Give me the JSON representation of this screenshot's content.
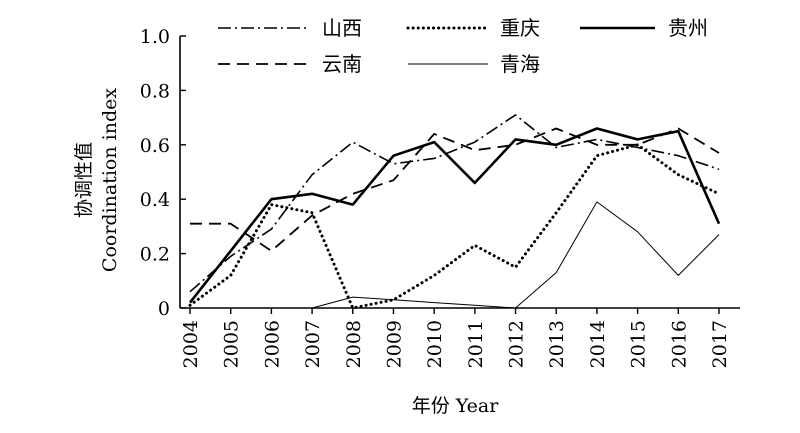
{
  "chart_data": {
    "type": "line",
    "x": [
      "2004",
      "2005",
      "2006",
      "2007",
      "2008",
      "2009",
      "2010",
      "2011",
      "2012",
      "2013",
      "2014",
      "2015",
      "2016",
      "2017"
    ],
    "ylim": [
      0,
      1.0
    ],
    "yticks": [
      "0",
      "0.2",
      "0.4",
      "0.6",
      "0.8",
      "1.0"
    ],
    "ylabel_zh": "协调性值",
    "ylabel_en": "Coordination index",
    "xlabel": "年份 Year",
    "grid": false,
    "legend_position": "top",
    "series": [
      {
        "name": "山西",
        "style": "dashdot",
        "values": [
          0.06,
          0.19,
          0.29,
          0.49,
          0.61,
          0.53,
          0.55,
          0.61,
          0.71,
          0.59,
          0.62,
          0.59,
          0.56,
          0.51
        ]
      },
      {
        "name": "重庆",
        "style": "dotted",
        "values": [
          0.01,
          0.12,
          0.38,
          0.35,
          0.0,
          0.03,
          0.12,
          0.23,
          0.15,
          0.35,
          0.56,
          0.6,
          0.49,
          0.42
        ]
      },
      {
        "name": "贵州",
        "style": "solid-thick",
        "values": [
          0.02,
          0.21,
          0.4,
          0.42,
          0.38,
          0.56,
          0.61,
          0.46,
          0.62,
          0.6,
          0.66,
          0.62,
          0.65,
          0.31
        ]
      },
      {
        "name": "云南",
        "style": "dashed",
        "values": [
          0.31,
          0.31,
          0.21,
          0.34,
          0.42,
          0.47,
          0.64,
          0.58,
          0.6,
          0.66,
          0.6,
          0.6,
          0.66,
          0.57
        ]
      },
      {
        "name": "青海",
        "style": "solid-thin",
        "values": [
          0.0,
          0.0,
          0.0,
          0.0,
          0.04,
          0.03,
          0.02,
          0.01,
          0.0,
          0.13,
          0.39,
          0.28,
          0.12,
          0.27
        ]
      }
    ]
  }
}
